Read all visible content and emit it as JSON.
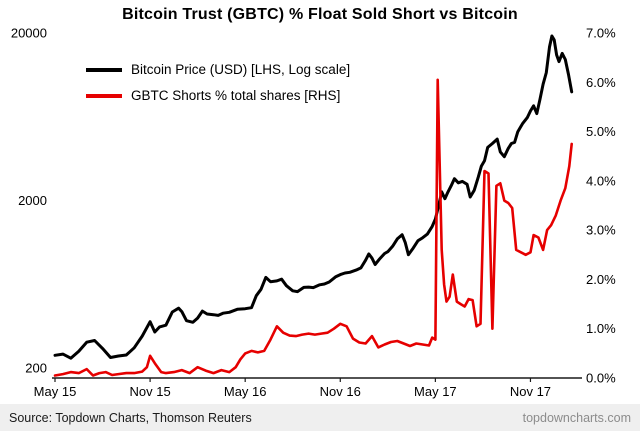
{
  "title": "Bitcoin Trust (GBTC) % Float Sold Short vs Bitcoin",
  "footer": {
    "source": "Source: Topdown Charts, Thomson Reuters",
    "site": "topdowncharts.com"
  },
  "chart_data": {
    "type": "line",
    "title": "Bitcoin Trust (GBTC) % Float Sold Short vs Bitcoin",
    "legend_position": "top-left",
    "x_axis": {
      "unit": "m = months after May 2015",
      "range": [
        0,
        33
      ],
      "ticks": [
        {
          "m": 0,
          "label": "May 15"
        },
        {
          "m": 6,
          "label": "Nov 15"
        },
        {
          "m": 12,
          "label": "May 16"
        },
        {
          "m": 18,
          "label": "Nov 16"
        },
        {
          "m": 24,
          "label": "May 17"
        },
        {
          "m": 30,
          "label": "Nov 17"
        }
      ]
    },
    "left_axis": {
      "scale": "log",
      "range": [
        200,
        20000
      ],
      "ticks": [
        {
          "value": 20000,
          "label": "20000"
        },
        {
          "value": 2000,
          "label": "2000"
        },
        {
          "value": 200,
          "label": "200"
        }
      ]
    },
    "right_axis": {
      "scale": "linear",
      "range": [
        0,
        7
      ],
      "ticks": [
        {
          "value": 7,
          "label": "7.0%"
        },
        {
          "value": 6,
          "label": "6.0%"
        },
        {
          "value": 5,
          "label": "5.0%"
        },
        {
          "value": 4,
          "label": "4.0%"
        },
        {
          "value": 3,
          "label": "3.0%"
        },
        {
          "value": 2,
          "label": "2.0%"
        },
        {
          "value": 1,
          "label": "1.0%"
        },
        {
          "value": 0,
          "label": "0.0%"
        }
      ]
    },
    "series": [
      {
        "name": "Bitcoin Price (USD) [LHS, Log scale]",
        "color": "#000000",
        "axis": "left",
        "points": [
          [
            0,
            238
          ],
          [
            0.5,
            242
          ],
          [
            1,
            229
          ],
          [
            1.5,
            252
          ],
          [
            2,
            285
          ],
          [
            2.5,
            292
          ],
          [
            3,
            262
          ],
          [
            3.5,
            231
          ],
          [
            4,
            236
          ],
          [
            4.5,
            239
          ],
          [
            5,
            264
          ],
          [
            5.5,
            310
          ],
          [
            6,
            378
          ],
          [
            6.3,
            328
          ],
          [
            6.6,
            352
          ],
          [
            7,
            360
          ],
          [
            7.4,
            432
          ],
          [
            7.8,
            455
          ],
          [
            8,
            434
          ],
          [
            8.3,
            383
          ],
          [
            8.7,
            375
          ],
          [
            9,
            397
          ],
          [
            9.3,
            437
          ],
          [
            9.6,
            420
          ],
          [
            10,
            416
          ],
          [
            10.3,
            412
          ],
          [
            10.6,
            425
          ],
          [
            11,
            430
          ],
          [
            11.5,
            448
          ],
          [
            12,
            452
          ],
          [
            12.4,
            458
          ],
          [
            12.7,
            540
          ],
          [
            13,
            590
          ],
          [
            13.3,
            695
          ],
          [
            13.6,
            655
          ],
          [
            14,
            662
          ],
          [
            14.3,
            678
          ],
          [
            14.6,
            620
          ],
          [
            15,
            578
          ],
          [
            15.3,
            572
          ],
          [
            15.7,
            606
          ],
          [
            16,
            608
          ],
          [
            16.3,
            604
          ],
          [
            16.7,
            628
          ],
          [
            17,
            635
          ],
          [
            17.3,
            652
          ],
          [
            17.7,
            700
          ],
          [
            18,
            722
          ],
          [
            18.3,
            738
          ],
          [
            18.6,
            745
          ],
          [
            19,
            768
          ],
          [
            19.3,
            792
          ],
          [
            19.6,
            880
          ],
          [
            19.8,
            960
          ],
          [
            20,
            905
          ],
          [
            20.2,
            830
          ],
          [
            20.5,
            900
          ],
          [
            20.8,
            965
          ],
          [
            21,
            990
          ],
          [
            21.3,
            1065
          ],
          [
            21.6,
            1180
          ],
          [
            21.9,
            1250
          ],
          [
            22.1,
            1120
          ],
          [
            22.3,
            950
          ],
          [
            22.6,
            1040
          ],
          [
            22.9,
            1150
          ],
          [
            23.2,
            1200
          ],
          [
            23.5,
            1260
          ],
          [
            23.8,
            1400
          ],
          [
            24,
            1550
          ],
          [
            24.2,
            1850
          ],
          [
            24.4,
            2250
          ],
          [
            24.6,
            2050
          ],
          [
            24.8,
            2250
          ],
          [
            25,
            2450
          ],
          [
            25.2,
            2700
          ],
          [
            25.45,
            2550
          ],
          [
            25.7,
            2600
          ],
          [
            26,
            2500
          ],
          [
            26.2,
            2100
          ],
          [
            26.45,
            2300
          ],
          [
            26.7,
            2750
          ],
          [
            26.9,
            3200
          ],
          [
            27.1,
            3450
          ],
          [
            27.3,
            4150
          ],
          [
            27.6,
            4380
          ],
          [
            27.9,
            4650
          ],
          [
            28.1,
            3900
          ],
          [
            28.35,
            3650
          ],
          [
            28.6,
            4100
          ],
          [
            28.8,
            4380
          ],
          [
            29,
            4450
          ],
          [
            29.2,
            5150
          ],
          [
            29.5,
            5750
          ],
          [
            29.8,
            6250
          ],
          [
            30,
            6850
          ],
          [
            30.2,
            7350
          ],
          [
            30.4,
            6600
          ],
          [
            30.6,
            8050
          ],
          [
            30.8,
            9900
          ],
          [
            31,
            11600
          ],
          [
            31.2,
            16500
          ],
          [
            31.35,
            19200
          ],
          [
            31.5,
            18200
          ],
          [
            31.65,
            14800
          ],
          [
            31.8,
            13500
          ],
          [
            32,
            15100
          ],
          [
            32.2,
            13900
          ],
          [
            32.4,
            11300
          ],
          [
            32.6,
            8900
          ]
        ]
      },
      {
        "name": "GBTC Shorts % total shares [RHS]",
        "color": "#e60000",
        "axis": "right",
        "points": [
          [
            0,
            0.05
          ],
          [
            0.5,
            0.08
          ],
          [
            1,
            0.12
          ],
          [
            1.5,
            0.1
          ],
          [
            2,
            0.18
          ],
          [
            2.4,
            0.05
          ],
          [
            2.8,
            0.1
          ],
          [
            3.2,
            0.12
          ],
          [
            3.6,
            0.06
          ],
          [
            4,
            0.08
          ],
          [
            4.5,
            0.1
          ],
          [
            5,
            0.1
          ],
          [
            5.5,
            0.13
          ],
          [
            5.8,
            0.22
          ],
          [
            6,
            0.45
          ],
          [
            6.3,
            0.3
          ],
          [
            6.7,
            0.12
          ],
          [
            7,
            0.1
          ],
          [
            7.5,
            0.12
          ],
          [
            8,
            0.16
          ],
          [
            8.5,
            0.1
          ],
          [
            9,
            0.22
          ],
          [
            9.5,
            0.15
          ],
          [
            10,
            0.1
          ],
          [
            10.5,
            0.16
          ],
          [
            11,
            0.12
          ],
          [
            11.4,
            0.22
          ],
          [
            11.7,
            0.38
          ],
          [
            12,
            0.5
          ],
          [
            12.4,
            0.55
          ],
          [
            12.8,
            0.52
          ],
          [
            13.2,
            0.55
          ],
          [
            13.6,
            0.78
          ],
          [
            14,
            1.05
          ],
          [
            14.4,
            0.92
          ],
          [
            14.8,
            0.86
          ],
          [
            15.2,
            0.85
          ],
          [
            15.6,
            0.88
          ],
          [
            16,
            0.9
          ],
          [
            16.4,
            0.88
          ],
          [
            16.8,
            0.9
          ],
          [
            17.2,
            0.92
          ],
          [
            17.6,
            1.0
          ],
          [
            18,
            1.1
          ],
          [
            18.4,
            1.05
          ],
          [
            18.8,
            0.8
          ],
          [
            19.2,
            0.72
          ],
          [
            19.6,
            0.7
          ],
          [
            20,
            0.85
          ],
          [
            20.4,
            0.62
          ],
          [
            20.8,
            0.68
          ],
          [
            21.2,
            0.73
          ],
          [
            21.6,
            0.75
          ],
          [
            22,
            0.7
          ],
          [
            22.4,
            0.65
          ],
          [
            22.8,
            0.7
          ],
          [
            23.2,
            0.68
          ],
          [
            23.6,
            0.66
          ],
          [
            23.8,
            0.82
          ],
          [
            24,
            0.78
          ],
          [
            24.15,
            6.05
          ],
          [
            24.4,
            2.6
          ],
          [
            24.55,
            1.9
          ],
          [
            24.7,
            1.55
          ],
          [
            24.9,
            1.65
          ],
          [
            25.1,
            2.1
          ],
          [
            25.35,
            1.55
          ],
          [
            25.6,
            1.5
          ],
          [
            25.85,
            1.45
          ],
          [
            26.1,
            1.6
          ],
          [
            26.35,
            1.58
          ],
          [
            26.6,
            1.05
          ],
          [
            26.85,
            1.1
          ],
          [
            27.1,
            4.2
          ],
          [
            27.35,
            4.15
          ],
          [
            27.6,
            1.0
          ],
          [
            27.85,
            3.9
          ],
          [
            28.1,
            3.95
          ],
          [
            28.35,
            3.6
          ],
          [
            28.6,
            3.55
          ],
          [
            28.85,
            3.45
          ],
          [
            29.1,
            2.6
          ],
          [
            29.4,
            2.55
          ],
          [
            29.7,
            2.5
          ],
          [
            30,
            2.55
          ],
          [
            30.2,
            2.9
          ],
          [
            30.5,
            2.85
          ],
          [
            30.8,
            2.6
          ],
          [
            31.05,
            3.0
          ],
          [
            31.3,
            3.1
          ],
          [
            31.6,
            3.3
          ],
          [
            31.9,
            3.6
          ],
          [
            32.2,
            3.85
          ],
          [
            32.45,
            4.3
          ],
          [
            32.6,
            4.75
          ]
        ]
      }
    ]
  }
}
